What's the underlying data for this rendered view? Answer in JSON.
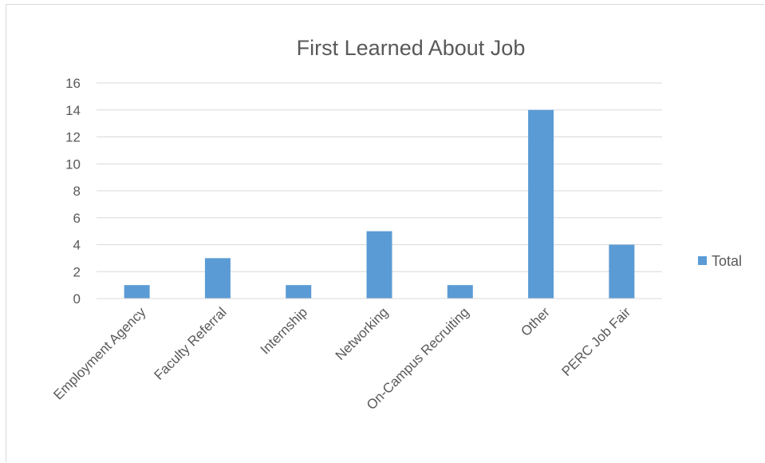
{
  "chart_data": {
    "type": "bar",
    "title": "First Learned About Job",
    "xlabel": "",
    "ylabel": "",
    "categories": [
      "Employment Agency",
      "Faculty Referral",
      "Internship",
      "Networking",
      "On-Campus Recruiting",
      "Other",
      "PERC Job Fair"
    ],
    "series": [
      {
        "name": "Total",
        "values": [
          1,
          3,
          1,
          5,
          1,
          14,
          4
        ],
        "color": "#5B9BD5"
      }
    ],
    "ylim": [
      0,
      16
    ],
    "yticks": [
      0,
      2,
      4,
      6,
      8,
      10,
      12,
      14,
      16
    ],
    "grid": true,
    "legend": "right"
  }
}
